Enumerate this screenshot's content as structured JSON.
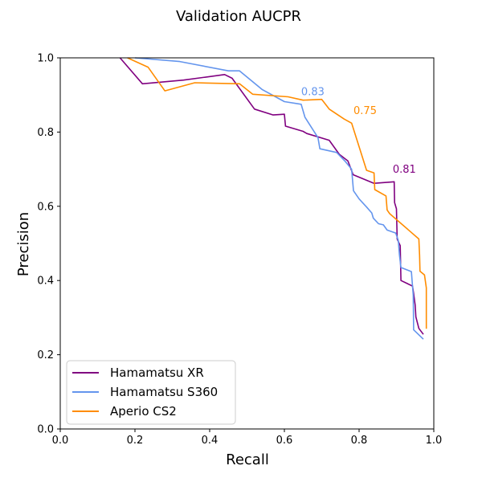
{
  "chart_data": {
    "type": "line",
    "title": "Validation AUCPR",
    "xlabel": "Recall",
    "ylabel": "Precision",
    "xlim": [
      0.0,
      1.0
    ],
    "ylim": [
      0.0,
      1.0
    ],
    "xticks": [
      "0.0",
      "0.2",
      "0.4",
      "0.6",
      "0.8",
      "1.0"
    ],
    "yticks": [
      "0.0",
      "0.2",
      "0.4",
      "0.6",
      "0.8",
      "1.0"
    ],
    "grid": false,
    "legend_position": "lower-left",
    "series": [
      {
        "name": "Hamamatsu XR",
        "color": "#800080",
        "points": [
          [
            0.16,
            1.0
          ],
          [
            0.22,
            0.93
          ],
          [
            0.33,
            0.94
          ],
          [
            0.44,
            0.955
          ],
          [
            0.46,
            0.945
          ],
          [
            0.52,
            0.862
          ],
          [
            0.57,
            0.846
          ],
          [
            0.6,
            0.848
          ],
          [
            0.603,
            0.816
          ],
          [
            0.65,
            0.802
          ],
          [
            0.66,
            0.796
          ],
          [
            0.72,
            0.778
          ],
          [
            0.747,
            0.74
          ],
          [
            0.77,
            0.722
          ],
          [
            0.784,
            0.685
          ],
          [
            0.84,
            0.662
          ],
          [
            0.894,
            0.666
          ],
          [
            0.895,
            0.61
          ],
          [
            0.9,
            0.593
          ],
          [
            0.902,
            0.512
          ],
          [
            0.91,
            0.494
          ],
          [
            0.912,
            0.4
          ],
          [
            0.943,
            0.385
          ],
          [
            0.946,
            0.365
          ],
          [
            0.95,
            0.334
          ],
          [
            0.952,
            0.302
          ],
          [
            0.96,
            0.271
          ],
          [
            0.972,
            0.255
          ]
        ]
      },
      {
        "name": "Hamamatsu S360",
        "color": "#6495ed",
        "points": [
          [
            0.2,
            1.0
          ],
          [
            0.32,
            0.99
          ],
          [
            0.45,
            0.965
          ],
          [
            0.48,
            0.965
          ],
          [
            0.54,
            0.915
          ],
          [
            0.6,
            0.882
          ],
          [
            0.645,
            0.875
          ],
          [
            0.655,
            0.84
          ],
          [
            0.69,
            0.785
          ],
          [
            0.695,
            0.755
          ],
          [
            0.74,
            0.745
          ],
          [
            0.762,
            0.722
          ],
          [
            0.78,
            0.7
          ],
          [
            0.785,
            0.642
          ],
          [
            0.8,
            0.62
          ],
          [
            0.82,
            0.598
          ],
          [
            0.834,
            0.582
          ],
          [
            0.838,
            0.568
          ],
          [
            0.852,
            0.553
          ],
          [
            0.865,
            0.55
          ],
          [
            0.875,
            0.536
          ],
          [
            0.898,
            0.528
          ],
          [
            0.905,
            0.508
          ],
          [
            0.908,
            0.47
          ],
          [
            0.912,
            0.435
          ],
          [
            0.94,
            0.424
          ],
          [
            0.945,
            0.36
          ],
          [
            0.946,
            0.267
          ],
          [
            0.972,
            0.242
          ]
        ]
      },
      {
        "name": "Aperio CS2",
        "color": "#ff8c00",
        "points": [
          [
            0.18,
            1.0
          ],
          [
            0.235,
            0.975
          ],
          [
            0.28,
            0.911
          ],
          [
            0.36,
            0.933
          ],
          [
            0.48,
            0.93
          ],
          [
            0.515,
            0.902
          ],
          [
            0.61,
            0.895
          ],
          [
            0.65,
            0.886
          ],
          [
            0.7,
            0.888
          ],
          [
            0.72,
            0.862
          ],
          [
            0.76,
            0.835
          ],
          [
            0.78,
            0.824
          ],
          [
            0.82,
            0.697
          ],
          [
            0.84,
            0.69
          ],
          [
            0.842,
            0.645
          ],
          [
            0.872,
            0.628
          ],
          [
            0.875,
            0.59
          ],
          [
            0.882,
            0.58
          ],
          [
            0.96,
            0.512
          ],
          [
            0.962,
            0.468
          ],
          [
            0.963,
            0.425
          ],
          [
            0.975,
            0.415
          ],
          [
            0.98,
            0.38
          ],
          [
            0.98,
            0.27
          ]
        ]
      }
    ],
    "annotations": [
      {
        "text": "0.83",
        "x": 0.645,
        "y": 0.899,
        "color": "#6495ed"
      },
      {
        "text": "0.75",
        "x": 0.785,
        "y": 0.848,
        "color": "#ff8c00"
      },
      {
        "text": "0.81",
        "x": 0.89,
        "y": 0.69,
        "color": "#800080"
      }
    ]
  }
}
